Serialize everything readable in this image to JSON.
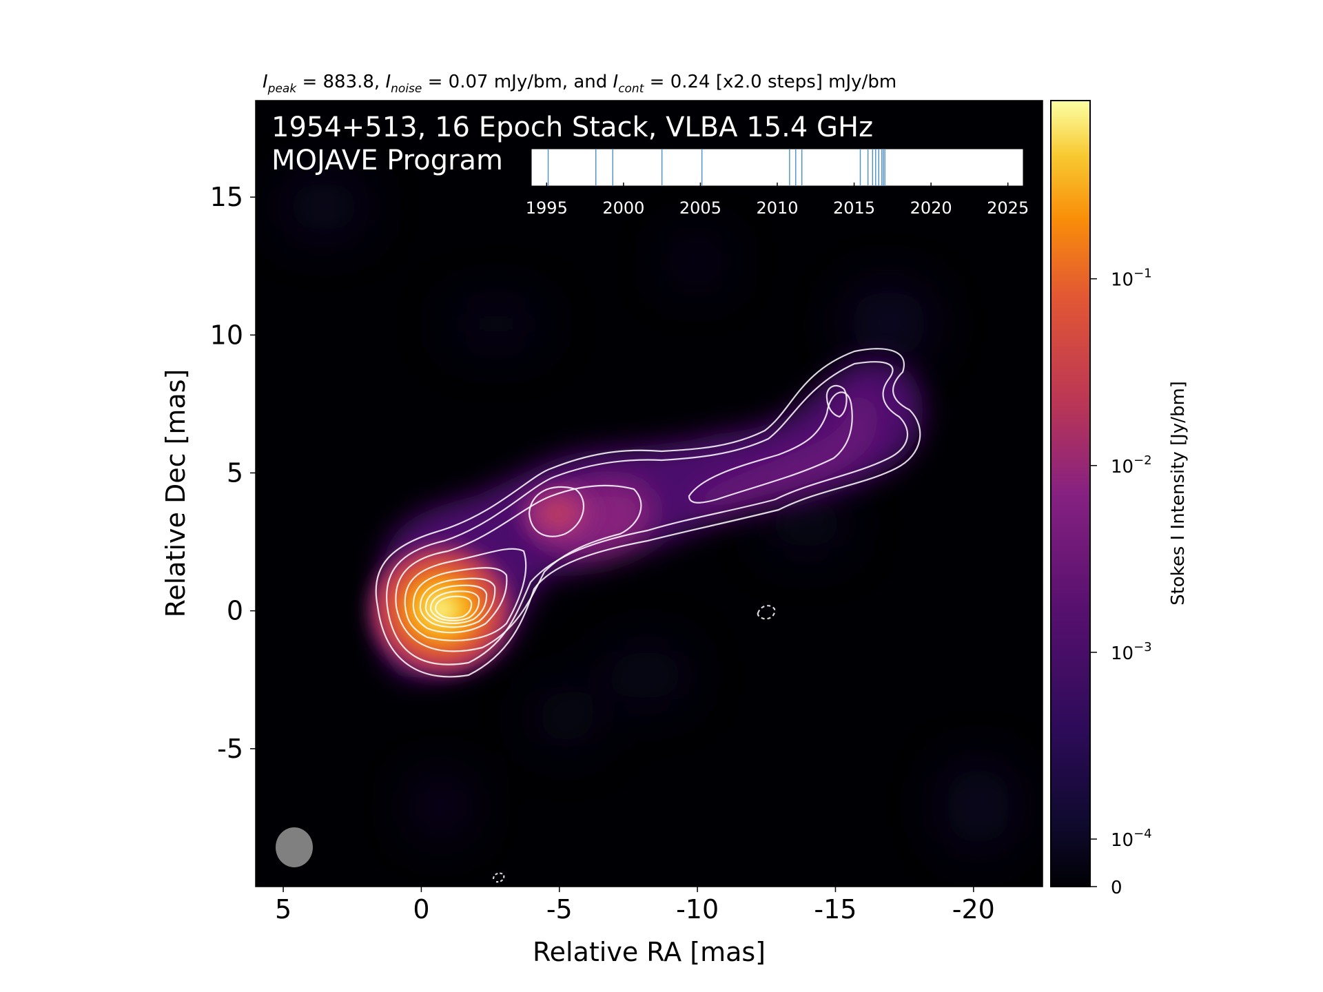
{
  "chart_data": {
    "type": "heatmap",
    "header": {
      "i_peak_label": "I",
      "i_peak_sub": "peak",
      "i_peak_value": " = 883.8, ",
      "i_noise_label": "I",
      "i_noise_sub": "noise",
      "i_noise_value": " = 0.07 mJy/bm, and ",
      "i_cont_label": "I",
      "i_cont_sub": "cont",
      "i_cont_value": " = 0.24 [x2.0 steps] mJy/bm"
    },
    "title_line1": "1954+513, 16 Epoch Stack, VLBA 15.4 GHz",
    "title_line2": "MOJAVE Program",
    "xlabel": "Relative RA [mas]",
    "ylabel": "Relative Dec [mas]",
    "xlim": [
      6,
      -22.5
    ],
    "ylim": [
      -10,
      18.5
    ],
    "xticks": [
      5,
      0,
      -5,
      -10,
      -15,
      -20
    ],
    "xtick_labels": [
      "5",
      "0",
      "-5",
      "-10",
      "-15",
      "-20"
    ],
    "yticks": [
      15,
      10,
      5,
      0,
      -5
    ],
    "ytick_labels": [
      "15",
      "10",
      "5",
      "0",
      "-5"
    ],
    "colorbar": {
      "label": "Stokes I Intensity [Jy/bm]",
      "scale": "log",
      "tick_values": [
        0.1,
        0.01,
        0.001,
        0.0001,
        0
      ],
      "tick_labels": [
        {
          "base": "10",
          "exp": "−1"
        },
        {
          "base": "10",
          "exp": "−2"
        },
        {
          "base": "10",
          "exp": "−3"
        },
        {
          "base": "10",
          "exp": "−4"
        },
        {
          "base": "0",
          "exp": ""
        }
      ],
      "colormap": "inferno"
    },
    "beam": {
      "major_mas": 2.6,
      "minor_mas": 2.3,
      "color": "#808080"
    },
    "contour_color": "#ffffff",
    "components": [
      {
        "ra": -0.3,
        "dec": 0.1,
        "peak_jy": 0.88
      },
      {
        "ra": -4.5,
        "dec": 3.5,
        "peak_jy": 0.0045
      },
      {
        "ra": -14.5,
        "dec": 7.0,
        "peak_jy": 0.0012
      }
    ],
    "epoch_timeline": {
      "xlim": [
        1994,
        2026
      ],
      "ticks": [
        1995,
        2000,
        2005,
        2010,
        2015,
        2020,
        2025
      ],
      "tick_labels": [
        "1995",
        "2000",
        "2005",
        "2010",
        "2015",
        "2020",
        "2025"
      ],
      "epochs": [
        1995.1,
        1998.2,
        1999.3,
        2002.5,
        2005.1,
        2010.8,
        2011.2,
        2011.6,
        2015.4,
        2015.9,
        2016.2,
        2016.4,
        2016.6,
        2016.8,
        2016.9,
        2017.0
      ],
      "line_color": "#4a8fc7"
    }
  }
}
